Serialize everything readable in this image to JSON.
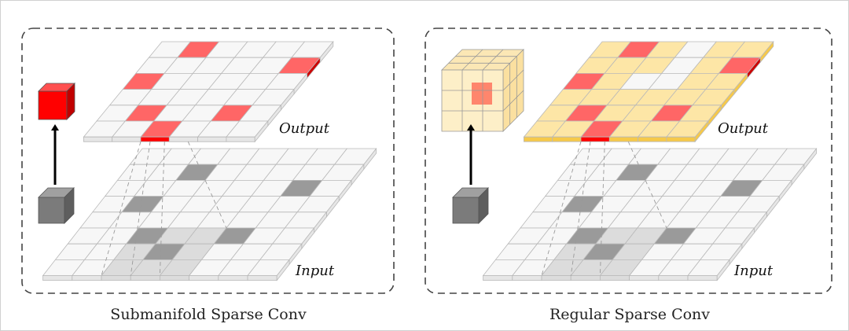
{
  "colors": {
    "cell_empty": "#f7f7f7",
    "grid_line": "#b9b9b9",
    "active_output": "#ff6666",
    "active_output_front": "#ff0000",
    "dilated_output": "#fde6a6",
    "dilated_output_edge": "#f6c94a",
    "active_input": "#9a9a9a",
    "receptive_field": "#dcdcdc",
    "panel_border": "#444444"
  },
  "panels": [
    {
      "caption": "Submanifold Sparse Conv",
      "output_label": "Output",
      "input_label": "Input",
      "output_grid": {
        "rows": 6,
        "cols": 6,
        "active": [
          [
            1,
            0
          ],
          [
            5,
            1
          ],
          [
            0,
            2
          ],
          [
            1,
            4
          ],
          [
            4,
            4
          ],
          [
            2,
            5
          ]
        ],
        "dilated": false,
        "empty_cells": []
      },
      "input_grid": {
        "rows": 8,
        "cols": 8,
        "active": [
          [
            2,
            1
          ],
          [
            6,
            2
          ],
          [
            1,
            3
          ],
          [
            2,
            5
          ],
          [
            5,
            5
          ],
          [
            3,
            6
          ]
        ],
        "receptive_field": [
          [
            2,
            5
          ],
          [
            3,
            5
          ],
          [
            4,
            5
          ],
          [
            2,
            6
          ],
          [
            3,
            6
          ],
          [
            4,
            6
          ],
          [
            2,
            7
          ],
          [
            3,
            7
          ],
          [
            4,
            7
          ]
        ]
      },
      "output_kernel_icon": "red-cube-icon",
      "input_kernel_icon": "gray-cube-icon"
    },
    {
      "caption": "Regular Sparse Conv",
      "output_label": "Output",
      "input_label": "Input",
      "output_grid": {
        "rows": 6,
        "cols": 6,
        "active": [
          [
            1,
            0
          ],
          [
            5,
            1
          ],
          [
            0,
            2
          ],
          [
            1,
            4
          ],
          [
            4,
            4
          ],
          [
            2,
            5
          ]
        ],
        "dilated": true,
        "empty_cells": [
          [
            3,
            0
          ],
          [
            3,
            1
          ],
          [
            2,
            2
          ],
          [
            3,
            2
          ]
        ]
      },
      "input_grid": {
        "rows": 8,
        "cols": 8,
        "active": [
          [
            2,
            1
          ],
          [
            6,
            2
          ],
          [
            1,
            3
          ],
          [
            2,
            5
          ],
          [
            5,
            5
          ],
          [
            3,
            6
          ]
        ],
        "receptive_field": [
          [
            2,
            5
          ],
          [
            3,
            5
          ],
          [
            4,
            5
          ],
          [
            2,
            6
          ],
          [
            3,
            6
          ],
          [
            4,
            6
          ],
          [
            2,
            7
          ],
          [
            3,
            7
          ],
          [
            4,
            7
          ]
        ]
      },
      "output_kernel_icon": "yellow-3x3x3-cube-icon",
      "input_kernel_icon": "gray-cube-icon"
    }
  ]
}
